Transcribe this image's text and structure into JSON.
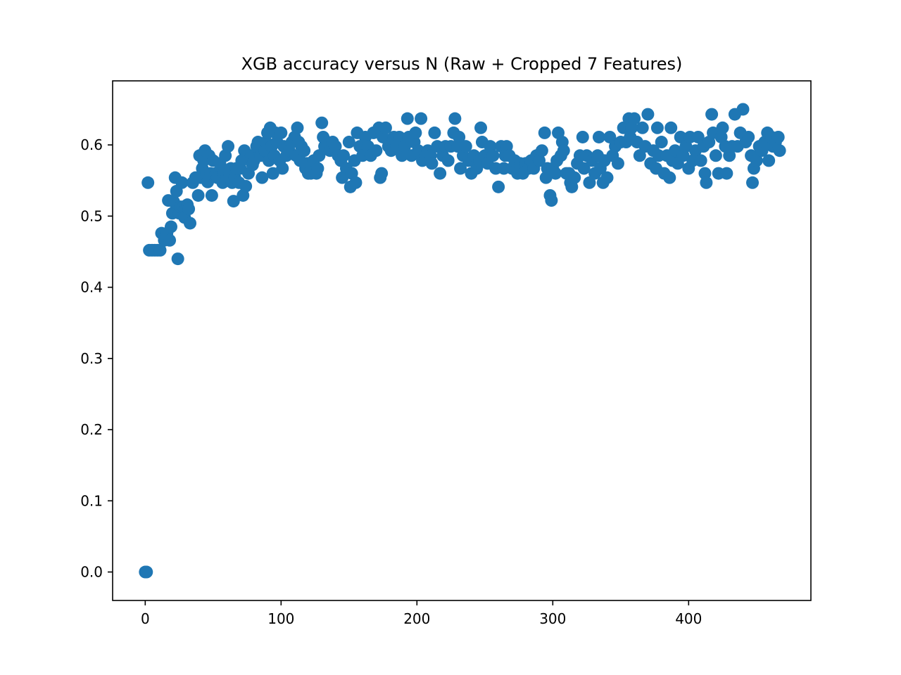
{
  "chart_data": {
    "type": "scatter",
    "title": "XGB accuracy versus N (Raw + Cropped 7 Features)",
    "xlabel": "",
    "ylabel": "",
    "xlim": [
      -24,
      490
    ],
    "ylim": [
      -0.04,
      0.69
    ],
    "x_ticks": [
      0,
      100,
      200,
      300,
      400
    ],
    "y_ticks": [
      0.0,
      0.1,
      0.2,
      0.3,
      0.4,
      0.5,
      0.6
    ],
    "x_tick_labels": [
      "0",
      "100",
      "200",
      "300",
      "400"
    ],
    "y_tick_labels": [
      "0.0",
      "0.1",
      "0.2",
      "0.3",
      "0.4",
      "0.5",
      "0.6"
    ],
    "grid": false,
    "legend": "none",
    "marker_color": "#1f77b4",
    "series": [
      {
        "points": [
          [
            0,
            0.0
          ],
          [
            1,
            0.0
          ],
          [
            2,
            0.547
          ],
          [
            3,
            0.452
          ],
          [
            5,
            0.452
          ],
          [
            7,
            0.452
          ],
          [
            9,
            0.452
          ],
          [
            11,
            0.452
          ],
          [
            12,
            0.476
          ],
          [
            14,
            0.466
          ],
          [
            16,
            0.476
          ],
          [
            17,
            0.522
          ],
          [
            18,
            0.466
          ],
          [
            19,
            0.485
          ],
          [
            20,
            0.504
          ],
          [
            21,
            0.52
          ],
          [
            22,
            0.554
          ],
          [
            23,
            0.535
          ],
          [
            24,
            0.44
          ],
          [
            25,
            0.504
          ],
          [
            26,
            0.513
          ],
          [
            27,
            0.547
          ],
          [
            28,
            0.513
          ],
          [
            29,
            0.498
          ],
          [
            30,
            0.513
          ],
          [
            31,
            0.516
          ],
          [
            32,
            0.51
          ],
          [
            33,
            0.49
          ],
          [
            35,
            0.547
          ],
          [
            37,
            0.554
          ],
          [
            39,
            0.529
          ],
          [
            40,
            0.585
          ],
          [
            41,
            0.554
          ],
          [
            42,
            0.567
          ],
          [
            43,
            0.578
          ],
          [
            44,
            0.592
          ],
          [
            45,
            0.56
          ],
          [
            46,
            0.548
          ],
          [
            47,
            0.585
          ],
          [
            48,
            0.56
          ],
          [
            49,
            0.529
          ],
          [
            50,
            0.578
          ],
          [
            52,
            0.56
          ],
          [
            53,
            0.554
          ],
          [
            55,
            0.574
          ],
          [
            57,
            0.547
          ],
          [
            58,
            0.56
          ],
          [
            59,
            0.585
          ],
          [
            60,
            0.554
          ],
          [
            61,
            0.598
          ],
          [
            62,
            0.56
          ],
          [
            63,
            0.567
          ],
          [
            64,
            0.547
          ],
          [
            65,
            0.521
          ],
          [
            66,
            0.554
          ],
          [
            67,
            0.567
          ],
          [
            69,
            0.547
          ],
          [
            70,
            0.567
          ],
          [
            71,
            0.578
          ],
          [
            72,
            0.529
          ],
          [
            73,
            0.592
          ],
          [
            74,
            0.542
          ],
          [
            76,
            0.56
          ],
          [
            78,
            0.585
          ],
          [
            79,
            0.572
          ],
          [
            80,
            0.578
          ],
          [
            82,
            0.598
          ],
          [
            83,
            0.604
          ],
          [
            85,
            0.585
          ],
          [
            86,
            0.554
          ],
          [
            88,
            0.592
          ],
          [
            89,
            0.604
          ],
          [
            90,
            0.617
          ],
          [
            91,
            0.578
          ],
          [
            92,
            0.624
          ],
          [
            93,
            0.598
          ],
          [
            94,
            0.56
          ],
          [
            95,
            0.585
          ],
          [
            96,
            0.617
          ],
          [
            97,
            0.604
          ],
          [
            99,
            0.578
          ],
          [
            100,
            0.617
          ],
          [
            101,
            0.567
          ],
          [
            102,
            0.598
          ],
          [
            104,
            0.585
          ],
          [
            106,
            0.592
          ],
          [
            108,
            0.604
          ],
          [
            110,
            0.611
          ],
          [
            111,
            0.585
          ],
          [
            112,
            0.624
          ],
          [
            113,
            0.604
          ],
          [
            114,
            0.578
          ],
          [
            115,
            0.598
          ],
          [
            117,
            0.592
          ],
          [
            118,
            0.567
          ],
          [
            119,
            0.574
          ],
          [
            120,
            0.56
          ],
          [
            122,
            0.56
          ],
          [
            124,
            0.578
          ],
          [
            126,
            0.56
          ],
          [
            127,
            0.567
          ],
          [
            128,
            0.585
          ],
          [
            130,
            0.631
          ],
          [
            131,
            0.611
          ],
          [
            132,
            0.598
          ],
          [
            134,
            0.604
          ],
          [
            136,
            0.592
          ],
          [
            138,
            0.604
          ],
          [
            140,
            0.598
          ],
          [
            142,
            0.585
          ],
          [
            144,
            0.578
          ],
          [
            145,
            0.554
          ],
          [
            146,
            0.585
          ],
          [
            148,
            0.567
          ],
          [
            150,
            0.604
          ],
          [
            151,
            0.541
          ],
          [
            152,
            0.56
          ],
          [
            154,
            0.578
          ],
          [
            155,
            0.547
          ],
          [
            156,
            0.617
          ],
          [
            158,
            0.598
          ],
          [
            160,
            0.585
          ],
          [
            162,
            0.611
          ],
          [
            164,
            0.598
          ],
          [
            166,
            0.585
          ],
          [
            168,
            0.617
          ],
          [
            170,
            0.592
          ],
          [
            172,
            0.624
          ],
          [
            173,
            0.554
          ],
          [
            174,
            0.56
          ],
          [
            175,
            0.611
          ],
          [
            177,
            0.624
          ],
          [
            179,
            0.598
          ],
          [
            181,
            0.592
          ],
          [
            183,
            0.611
          ],
          [
            185,
            0.598
          ],
          [
            187,
            0.611
          ],
          [
            189,
            0.585
          ],
          [
            191,
            0.598
          ],
          [
            193,
            0.637
          ],
          [
            194,
            0.611
          ],
          [
            196,
            0.585
          ],
          [
            198,
            0.604
          ],
          [
            199,
            0.617
          ],
          [
            201,
            0.592
          ],
          [
            203,
            0.637
          ],
          [
            204,
            0.578
          ],
          [
            206,
            0.585
          ],
          [
            208,
            0.592
          ],
          [
            210,
            0.585
          ],
          [
            211,
            0.574
          ],
          [
            213,
            0.617
          ],
          [
            215,
            0.598
          ],
          [
            217,
            0.56
          ],
          [
            219,
            0.585
          ],
          [
            221,
            0.598
          ],
          [
            223,
            0.578
          ],
          [
            225,
            0.598
          ],
          [
            227,
            0.617
          ],
          [
            228,
            0.637
          ],
          [
            230,
            0.598
          ],
          [
            231,
            0.611
          ],
          [
            232,
            0.567
          ],
          [
            234,
            0.585
          ],
          [
            236,
            0.598
          ],
          [
            238,
            0.578
          ],
          [
            240,
            0.56
          ],
          [
            242,
            0.585
          ],
          [
            244,
            0.567
          ],
          [
            246,
            0.578
          ],
          [
            247,
            0.624
          ],
          [
            248,
            0.604
          ],
          [
            250,
            0.585
          ],
          [
            252,
            0.574
          ],
          [
            254,
            0.598
          ],
          [
            256,
            0.585
          ],
          [
            258,
            0.567
          ],
          [
            260,
            0.541
          ],
          [
            262,
            0.598
          ],
          [
            264,
            0.567
          ],
          [
            265,
            0.585
          ],
          [
            266,
            0.598
          ],
          [
            268,
            0.585
          ],
          [
            270,
            0.567
          ],
          [
            272,
            0.578
          ],
          [
            274,
            0.56
          ],
          [
            276,
            0.574
          ],
          [
            278,
            0.56
          ],
          [
            280,
            0.574
          ],
          [
            282,
            0.567
          ],
          [
            284,
            0.578
          ],
          [
            286,
            0.567
          ],
          [
            288,
            0.585
          ],
          [
            290,
            0.578
          ],
          [
            292,
            0.592
          ],
          [
            294,
            0.617
          ],
          [
            295,
            0.554
          ],
          [
            296,
            0.567
          ],
          [
            298,
            0.529
          ],
          [
            299,
            0.522
          ],
          [
            300,
            0.567
          ],
          [
            302,
            0.56
          ],
          [
            303,
            0.578
          ],
          [
            304,
            0.617
          ],
          [
            306,
            0.585
          ],
          [
            307,
            0.604
          ],
          [
            308,
            0.592
          ],
          [
            310,
            0.56
          ],
          [
            312,
            0.56
          ],
          [
            313,
            0.547
          ],
          [
            314,
            0.541
          ],
          [
            316,
            0.554
          ],
          [
            318,
            0.574
          ],
          [
            320,
            0.585
          ],
          [
            322,
            0.611
          ],
          [
            323,
            0.567
          ],
          [
            325,
            0.585
          ],
          [
            327,
            0.547
          ],
          [
            329,
            0.578
          ],
          [
            331,
            0.56
          ],
          [
            333,
            0.585
          ],
          [
            334,
            0.611
          ],
          [
            335,
            0.567
          ],
          [
            337,
            0.547
          ],
          [
            338,
            0.578
          ],
          [
            340,
            0.554
          ],
          [
            342,
            0.611
          ],
          [
            344,
            0.585
          ],
          [
            346,
            0.598
          ],
          [
            348,
            0.574
          ],
          [
            350,
            0.604
          ],
          [
            352,
            0.624
          ],
          [
            354,
            0.604
          ],
          [
            356,
            0.637
          ],
          [
            357,
            0.611
          ],
          [
            358,
            0.624
          ],
          [
            360,
            0.637
          ],
          [
            362,
            0.604
          ],
          [
            364,
            0.585
          ],
          [
            366,
            0.624
          ],
          [
            368,
            0.598
          ],
          [
            370,
            0.643
          ],
          [
            372,
            0.574
          ],
          [
            374,
            0.592
          ],
          [
            376,
            0.567
          ],
          [
            377,
            0.624
          ],
          [
            378,
            0.585
          ],
          [
            380,
            0.604
          ],
          [
            382,
            0.56
          ],
          [
            384,
            0.585
          ],
          [
            386,
            0.554
          ],
          [
            387,
            0.624
          ],
          [
            388,
            0.578
          ],
          [
            390,
            0.592
          ],
          [
            392,
            0.574
          ],
          [
            394,
            0.611
          ],
          [
            396,
            0.585
          ],
          [
            398,
            0.598
          ],
          [
            400,
            0.567
          ],
          [
            401,
            0.611
          ],
          [
            403,
            0.578
          ],
          [
            405,
            0.592
          ],
          [
            407,
            0.611
          ],
          [
            409,
            0.578
          ],
          [
            411,
            0.598
          ],
          [
            412,
            0.56
          ],
          [
            413,
            0.547
          ],
          [
            415,
            0.604
          ],
          [
            417,
            0.643
          ],
          [
            418,
            0.617
          ],
          [
            420,
            0.585
          ],
          [
            422,
            0.56
          ],
          [
            424,
            0.611
          ],
          [
            425,
            0.624
          ],
          [
            427,
            0.598
          ],
          [
            428,
            0.56
          ],
          [
            430,
            0.585
          ],
          [
            432,
            0.598
          ],
          [
            434,
            0.643
          ],
          [
            436,
            0.598
          ],
          [
            438,
            0.617
          ],
          [
            440,
            0.65
          ],
          [
            442,
            0.604
          ],
          [
            444,
            0.611
          ],
          [
            446,
            0.585
          ],
          [
            447,
            0.547
          ],
          [
            448,
            0.567
          ],
          [
            450,
            0.578
          ],
          [
            452,
            0.598
          ],
          [
            454,
            0.592
          ],
          [
            456,
            0.604
          ],
          [
            458,
            0.617
          ],
          [
            459,
            0.578
          ],
          [
            461,
            0.611
          ],
          [
            462,
            0.598
          ],
          [
            464,
            0.604
          ],
          [
            466,
            0.611
          ],
          [
            467,
            0.592
          ]
        ]
      }
    ]
  }
}
